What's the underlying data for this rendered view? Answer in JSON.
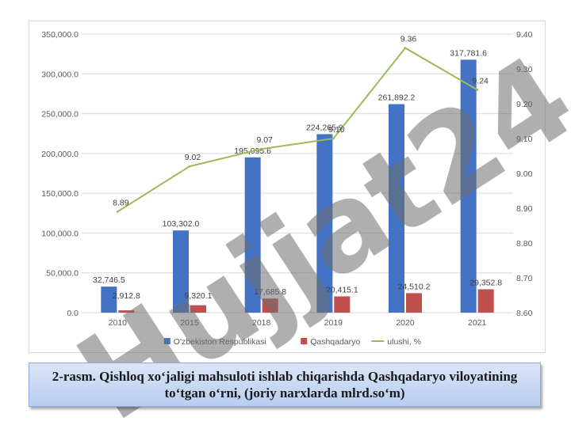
{
  "chart_data": {
    "type": "bar",
    "categories": [
      "2010",
      "2015",
      "2018",
      "2019",
      "2020",
      "2021"
    ],
    "series": [
      {
        "name": "O'zbekiston Respublikasi",
        "kind": "bar",
        "axis": "left",
        "color": "#4472c4",
        "values": [
          32746.5,
          103302.0,
          195095.6,
          224265.9,
          261892.2,
          317781.6
        ],
        "labels": [
          "32,746.5",
          "103,302.0",
          "195,095.6",
          "224,265.9",
          "261,892.2",
          "317,781.6"
        ]
      },
      {
        "name": "Qashqadaryo",
        "kind": "bar",
        "axis": "left",
        "color": "#c0504d",
        "values": [
          2912.8,
          9320.1,
          17685.8,
          20415.1,
          24510.2,
          29352.8
        ],
        "labels": [
          "2,912.8",
          "9,320.1",
          "17,685.8",
          "20,415.1",
          "24,510.2",
          "29,352.8"
        ]
      },
      {
        "name": "ulushi, %",
        "kind": "line",
        "axis": "right",
        "color": "#9bbb59",
        "values": [
          8.89,
          9.02,
          9.07,
          9.1,
          9.36,
          9.24
        ],
        "labels": [
          "8.89",
          "9.02",
          "9.07",
          "9.10",
          "9.36",
          "9.24"
        ]
      }
    ],
    "y_left": {
      "min": 0,
      "max": 350000,
      "step": 50000,
      "ticks": [
        "0.0",
        "50,000.0",
        "100,000.0",
        "150,000.0",
        "200,000.0",
        "250,000.0",
        "300,000.0",
        "350,000.0"
      ]
    },
    "y_right": {
      "min": 8.6,
      "max": 9.4,
      "step": 0.1,
      "ticks": [
        "8.60",
        "8.70",
        "8.80",
        "8.90",
        "9.00",
        "9.10",
        "9.20",
        "9.30",
        "9.40"
      ]
    },
    "grid": true,
    "legend_position": "bottom"
  },
  "watermark": "Hujjat24",
  "caption": "2-rasm. Qishloq xo‘jaligi mahsuloti ishlab chiqarishda Qashqadaryo viloyatining to‘tgan o‘rni, (joriy narxlarda mlrd.so‘m)"
}
